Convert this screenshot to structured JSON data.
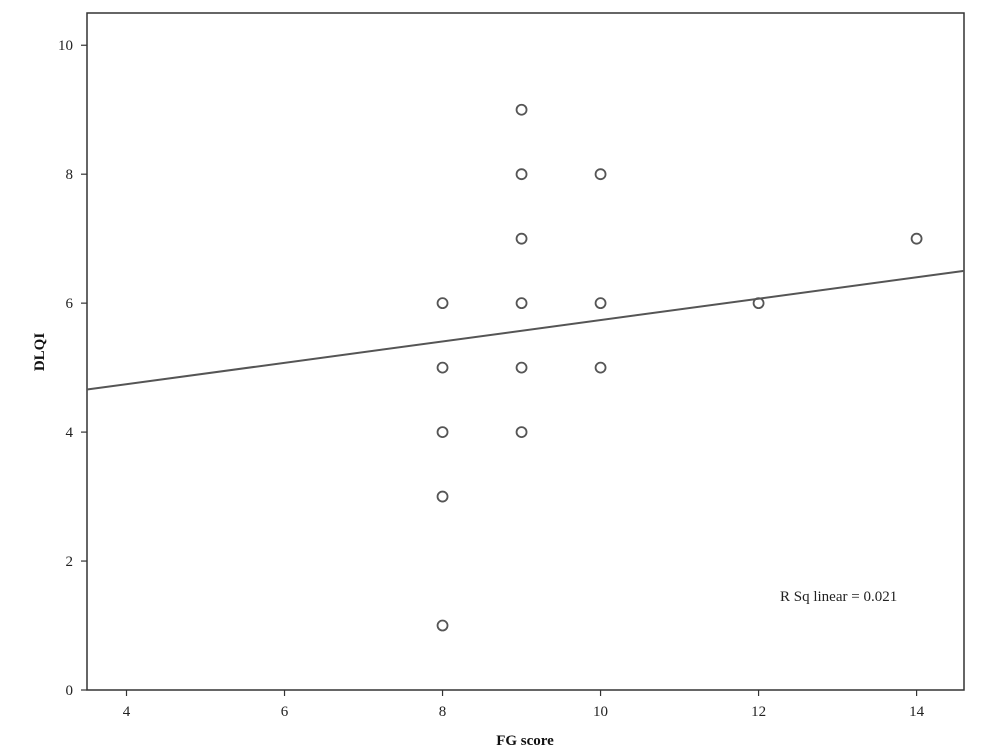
{
  "chart_data": {
    "type": "scatter",
    "title": "",
    "xlabel": "FG score",
    "ylabel": "DLQI",
    "xlim": [
      3.5,
      14.6
    ],
    "ylim": [
      0,
      10.5
    ],
    "xticks": [
      "4",
      "6",
      "8",
      "10",
      "12",
      "14"
    ],
    "yticks": [
      "0",
      "2",
      "4",
      "6",
      "8",
      "10"
    ],
    "grid": false,
    "points": [
      {
        "x": 8,
        "y": 6
      },
      {
        "x": 8,
        "y": 5
      },
      {
        "x": 8,
        "y": 4
      },
      {
        "x": 8,
        "y": 3
      },
      {
        "x": 8,
        "y": 1
      },
      {
        "x": 9,
        "y": 9
      },
      {
        "x": 9,
        "y": 8
      },
      {
        "x": 9,
        "y": 7
      },
      {
        "x": 9,
        "y": 6
      },
      {
        "x": 9,
        "y": 5
      },
      {
        "x": 9,
        "y": 4
      },
      {
        "x": 10,
        "y": 8
      },
      {
        "x": 10,
        "y": 6
      },
      {
        "x": 10,
        "y": 5
      },
      {
        "x": 12,
        "y": 6
      },
      {
        "x": 14,
        "y": 7
      }
    ],
    "fit_line": {
      "type": "linear",
      "x": [
        3.5,
        14.6
      ],
      "y": [
        4.66,
        6.5
      ]
    },
    "annotation": "R Sq linear = 0.021",
    "colors": {
      "marker": "#555555",
      "line": "#555555",
      "axis": "#333333"
    }
  }
}
